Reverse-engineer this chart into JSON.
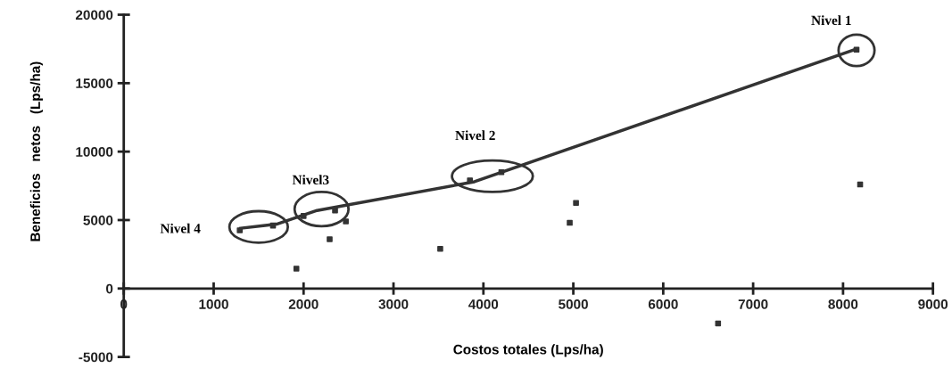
{
  "chart_data": {
    "type": "scatter",
    "xlabel": "Costos totales (Lps/ha)",
    "ylabel": "Beneficios   netos   (Lps/ha)",
    "xlim": [
      0,
      9000
    ],
    "ylim": [
      -5000,
      20000
    ],
    "xticks": [
      0,
      1000,
      2000,
      3000,
      4000,
      5000,
      6000,
      7000,
      8000,
      9000
    ],
    "yticks": [
      -5000,
      0,
      5000,
      10000,
      15000,
      20000
    ],
    "grid": false,
    "series": [
      {
        "color": "#333333",
        "marker": "square",
        "x": [
          1290,
          1660,
          2000,
          2350,
          2470,
          2290,
          1920,
          3520,
          3850,
          4200,
          5030,
          4960,
          8190,
          6610,
          8150
        ],
        "values": [
          4250,
          4600,
          5300,
          5700,
          4900,
          3600,
          1450,
          2900,
          7900,
          8500,
          6250,
          4800,
          7600,
          -2550,
          17450
        ]
      },
      {
        "type": "line",
        "color": "#333333",
        "marker": "none",
        "line_style": "solid",
        "x": [
          1300,
          1700,
          2150,
          3900,
          8150
        ],
        "values": [
          4400,
          4700,
          5700,
          7800,
          17500
        ]
      }
    ],
    "annotations": [
      "Nivel 1",
      "Nivel 2",
      "Nivel3",
      "Nivel 4"
    ]
  }
}
